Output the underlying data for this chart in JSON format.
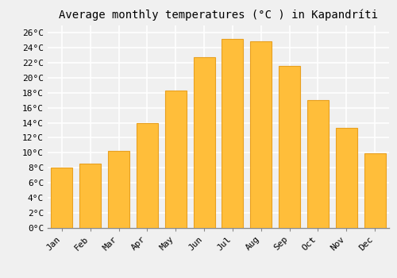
{
  "title": "Average monthly temperatures (°C ) in Kapandríti",
  "months": [
    "Jan",
    "Feb",
    "Mar",
    "Apr",
    "May",
    "Jun",
    "Jul",
    "Aug",
    "Sep",
    "Oct",
    "Nov",
    "Dec"
  ],
  "values": [
    8.0,
    8.6,
    10.3,
    13.9,
    18.3,
    22.7,
    25.2,
    24.8,
    21.6,
    17.0,
    13.3,
    9.9
  ],
  "bar_color": "#FFBE3A",
  "bar_edge_color": "#E8A020",
  "background_color": "#F0F0F0",
  "grid_color": "#FFFFFF",
  "ylim": [
    0,
    27
  ],
  "ytick_step": 2,
  "title_fontsize": 10,
  "tick_fontsize": 8,
  "font_family": "monospace"
}
